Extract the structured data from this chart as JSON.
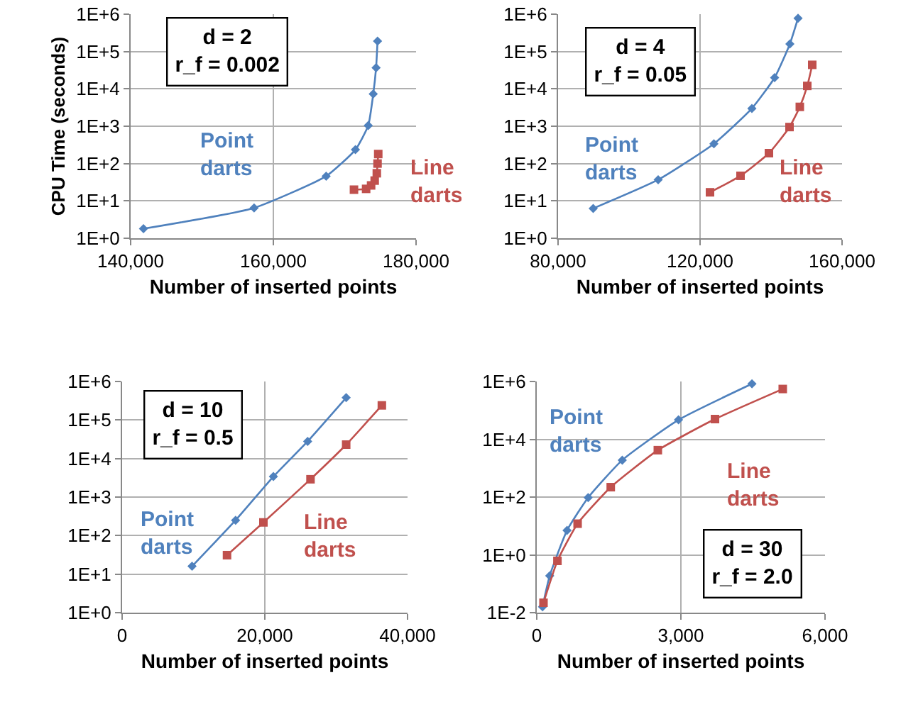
{
  "chart_data": [
    {
      "type": "line",
      "ylabel": "CPU Time (seconds)",
      "xlabel": "Number of inserted points",
      "annotations": [
        "d = 2\nr_f = 0.002"
      ],
      "log": "y",
      "grid": true,
      "legend": false,
      "xlim": [
        140000,
        180000
      ],
      "xticks": [
        {
          "value": 140000,
          "label": "140,000"
        },
        {
          "value": 160000,
          "label": "160,000"
        },
        {
          "value": 180000,
          "label": "180,000"
        }
      ],
      "ylim": [
        1,
        1000000
      ],
      "yticks": [
        {
          "value": 1,
          "label": "1E+0"
        },
        {
          "value": 10,
          "label": "1E+1"
        },
        {
          "value": 100,
          "label": "1E+2"
        },
        {
          "value": 1000,
          "label": "1E+3"
        },
        {
          "value": 10000,
          "label": "1E+4"
        },
        {
          "value": 100000,
          "label": "1E+5"
        },
        {
          "value": 1000000,
          "label": "1E+6"
        }
      ],
      "series": [
        {
          "name": "Point darts",
          "color": "#4f81bd",
          "marker": "diamond",
          "x": [
            141800,
            157300,
            167400,
            171500,
            173300,
            174000,
            174400,
            174600
          ],
          "values": [
            1.8,
            6.5,
            46,
            235,
            1050,
            7300,
            37000,
            190000
          ]
        },
        {
          "name": "Line darts",
          "color": "#c0504d",
          "marker": "square",
          "x": [
            171300,
            173000,
            173700,
            174200,
            174500,
            174600,
            174700
          ],
          "values": [
            20,
            21,
            26,
            35,
            55,
            100,
            180
          ]
        }
      ]
    },
    {
      "type": "line",
      "xlabel": "Number of inserted points",
      "annotations": [
        "d = 4\nr_f = 0.05"
      ],
      "log": "y",
      "grid": true,
      "legend": false,
      "xlim": [
        80000,
        160000
      ],
      "xticks": [
        {
          "value": 80000,
          "label": "80,000"
        },
        {
          "value": 120000,
          "label": "120,000"
        },
        {
          "value": 160000,
          "label": "160,000"
        }
      ],
      "ylim": [
        1,
        1000000
      ],
      "yticks": [
        {
          "value": 1,
          "label": "1E+0"
        },
        {
          "value": 10,
          "label": "1E+1"
        },
        {
          "value": 100,
          "label": "1E+2"
        },
        {
          "value": 1000,
          "label": "1E+3"
        },
        {
          "value": 10000,
          "label": "1E+4"
        },
        {
          "value": 100000,
          "label": "1E+5"
        },
        {
          "value": 1000000,
          "label": "1E+6"
        }
      ],
      "series": [
        {
          "name": "Point darts",
          "color": "#4f81bd",
          "marker": "diamond",
          "x": [
            89900,
            108200,
            123900,
            134600,
            141000,
            145300,
            147600
          ],
          "values": [
            6.3,
            37,
            340,
            3000,
            20000,
            160000,
            780000
          ]
        },
        {
          "name": "Line darts",
          "color": "#c0504d",
          "marker": "square",
          "x": [
            122800,
            131400,
            139400,
            145200,
            148100,
            150200,
            151600
          ],
          "values": [
            17,
            47,
            190,
            950,
            3300,
            12000,
            44000
          ]
        }
      ]
    },
    {
      "type": "line",
      "xlabel": "Number of inserted points",
      "annotations": [
        "d = 10\nr_f = 0.5"
      ],
      "log": "y",
      "grid": true,
      "legend": false,
      "xlim": [
        0,
        40000
      ],
      "xticks": [
        0,
        {
          "value": 20000,
          "label": "20,000"
        },
        {
          "value": 40000,
          "label": "40,000"
        }
      ],
      "ylim": [
        1,
        1000000
      ],
      "yticks": [
        {
          "value": 1,
          "label": "1E+0"
        },
        {
          "value": 10,
          "label": "1E+1"
        },
        {
          "value": 100,
          "label": "1E+2"
        },
        {
          "value": 1000,
          "label": "1E+3"
        },
        {
          "value": 10000,
          "label": "1E+4"
        },
        {
          "value": 100000,
          "label": "1E+5"
        },
        {
          "value": 1000000,
          "label": "1E+6"
        }
      ],
      "series": [
        {
          "name": "Point darts",
          "color": "#4f81bd",
          "marker": "diamond",
          "x": [
            9800,
            15900,
            21200,
            26000,
            31400
          ],
          "values": [
            16,
            250,
            3400,
            28000,
            380000
          ]
        },
        {
          "name": "Line darts",
          "color": "#c0504d",
          "marker": "square",
          "x": [
            14700,
            19800,
            26400,
            31400,
            36400
          ],
          "values": [
            31,
            220,
            2900,
            23000,
            240000
          ]
        }
      ]
    },
    {
      "type": "line",
      "xlabel": "Number of inserted points",
      "annotations": [
        "d = 30\nr_f = 2.0"
      ],
      "log": "y",
      "grid": true,
      "legend": false,
      "xlim": [
        0,
        6000
      ],
      "xticks": [
        0,
        {
          "value": 3000,
          "label": "3,000"
        },
        {
          "value": 6000,
          "label": "6,000"
        }
      ],
      "ylim": [
        0.01,
        1000000
      ],
      "yticks": [
        {
          "value": 0.01,
          "label": "1E-2"
        },
        {
          "value": 1,
          "label": "1E+0"
        },
        {
          "value": 100,
          "label": "1E+2"
        },
        {
          "value": 10000,
          "label": "1E+4"
        },
        {
          "value": 1000000,
          "label": "1E+6"
        }
      ],
      "series": [
        {
          "name": "Point darts",
          "color": "#4f81bd",
          "marker": "diamond",
          "x": [
            120,
            270,
            630,
            1070,
            1780,
            2950,
            4480
          ],
          "values": [
            0.016,
            0.19,
            7,
            96,
            1900,
            47000,
            830000
          ]
        },
        {
          "name": "Line darts",
          "color": "#c0504d",
          "marker": "square",
          "x": [
            140,
            430,
            850,
            1540,
            2520,
            3710,
            5120
          ],
          "values": [
            0.022,
            0.62,
            12,
            220,
            4200,
            50000,
            550000
          ]
        }
      ]
    }
  ]
}
